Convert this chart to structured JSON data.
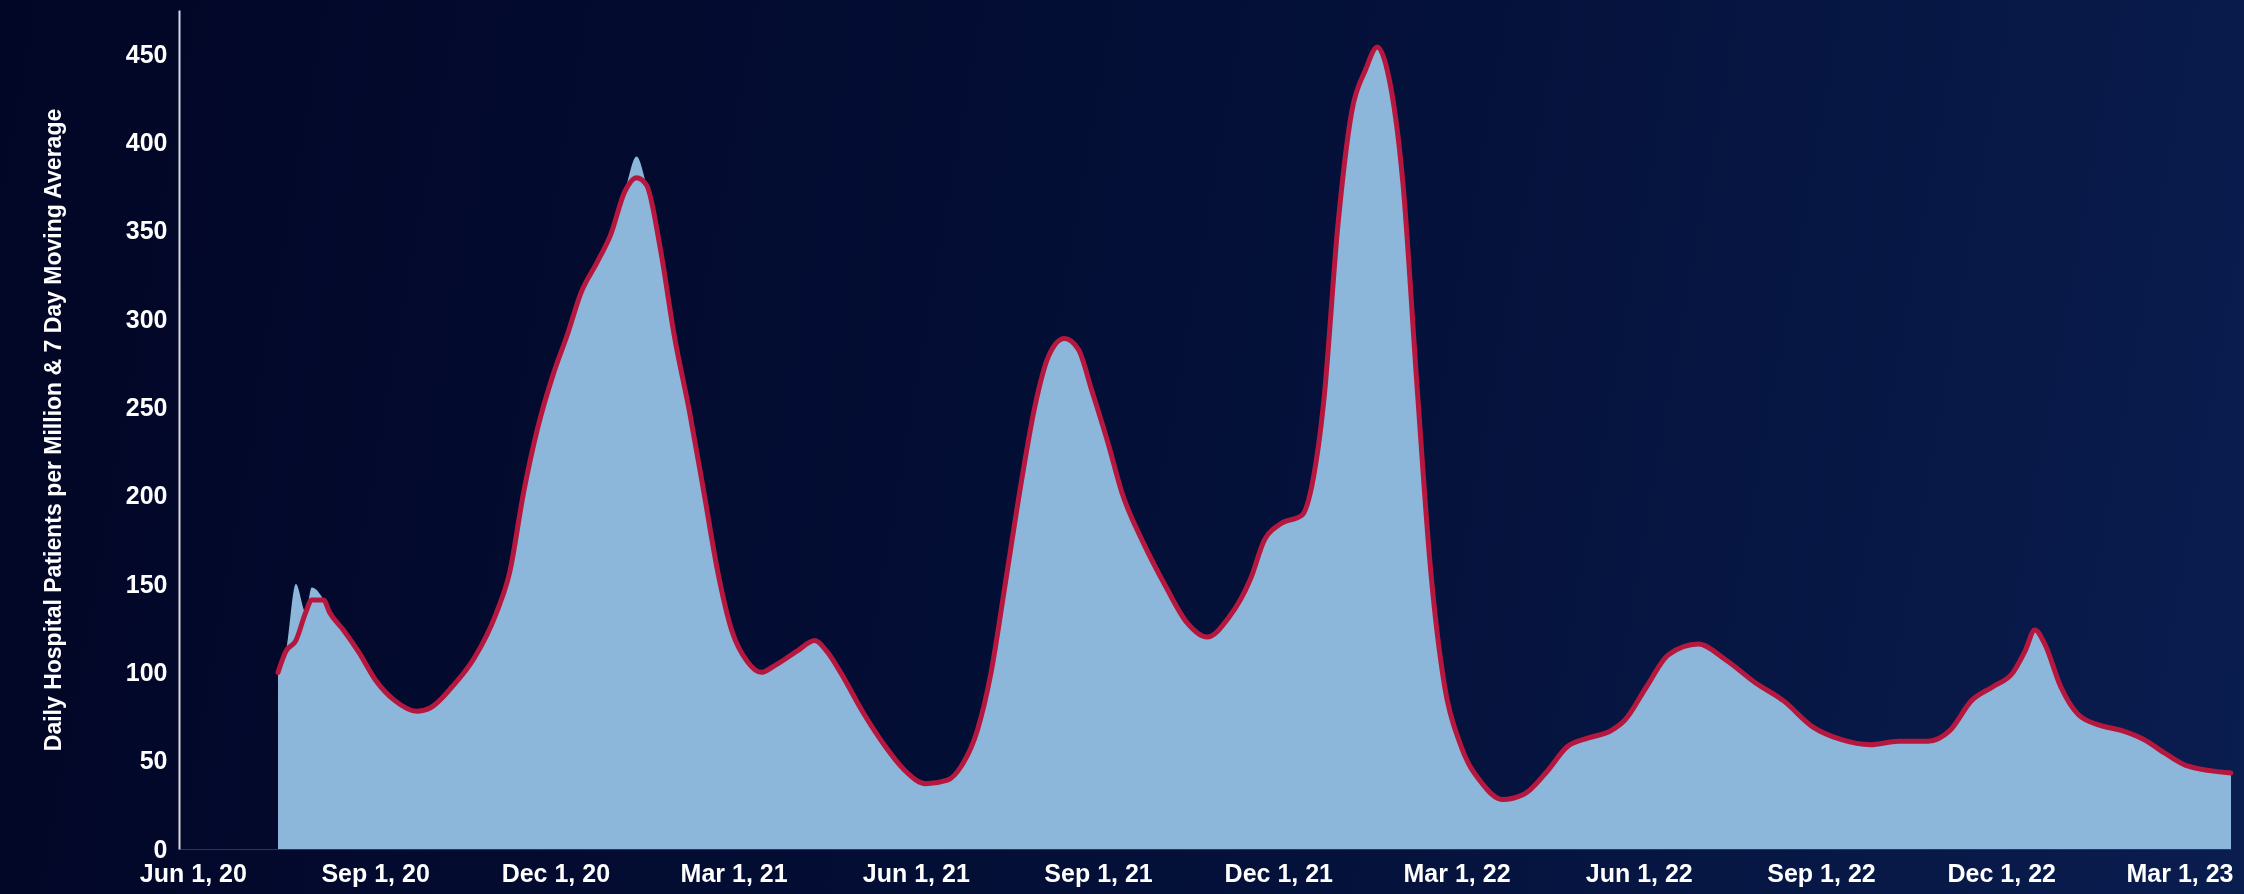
{
  "chart_data": {
    "type": "area",
    "ylabel": "Daily Hospital Patients per Million & 7 Day Moving Average",
    "x": [
      "2020-07-14",
      "2020-07-18",
      "2020-07-23",
      "2020-07-28",
      "2020-07-31",
      "2020-08-06",
      "2020-08-09",
      "2020-08-16",
      "2020-08-24",
      "2020-09-01",
      "2020-09-11",
      "2020-09-22",
      "2020-09-29",
      "2020-10-10",
      "2020-10-21",
      "2020-11-01",
      "2020-11-08",
      "2020-11-15",
      "2020-11-22",
      "2020-11-30",
      "2020-12-07",
      "2020-12-14",
      "2020-12-22",
      "2020-12-29",
      "2021-01-05",
      "2021-01-11",
      "2021-01-16",
      "2021-01-23",
      "2021-01-30",
      "2021-02-07",
      "2021-02-14",
      "2021-02-21",
      "2021-02-28",
      "2021-03-08",
      "2021-03-15",
      "2021-03-22",
      "2021-04-02",
      "2021-04-11",
      "2021-04-17",
      "2021-04-24",
      "2021-05-05",
      "2021-05-16",
      "2021-05-26",
      "2021-06-06",
      "2021-06-17",
      "2021-06-24",
      "2021-07-02",
      "2021-07-09",
      "2021-07-16",
      "2021-07-24",
      "2021-07-31",
      "2021-08-07",
      "2021-08-15",
      "2021-08-22",
      "2021-08-29",
      "2021-09-06",
      "2021-09-13",
      "2021-09-24",
      "2021-10-05",
      "2021-10-16",
      "2021-10-26",
      "2021-11-06",
      "2021-11-17",
      "2021-11-24",
      "2021-12-02",
      "2021-12-13",
      "2021-12-18",
      "2021-12-24",
      "2021-12-31",
      "2022-01-07",
      "2022-01-14",
      "2022-01-20",
      "2022-01-25",
      "2022-02-02",
      "2022-02-09",
      "2022-02-16",
      "2022-02-23",
      "2022-03-03",
      "2022-03-14",
      "2022-03-24",
      "2022-04-04",
      "2022-04-15",
      "2022-04-26",
      "2022-05-07",
      "2022-05-18",
      "2022-05-25",
      "2022-06-05",
      "2022-06-16",
      "2022-07-01",
      "2022-07-15",
      "2022-07-30",
      "2022-08-13",
      "2022-08-28",
      "2022-09-11",
      "2022-09-26",
      "2022-10-10",
      "2022-10-25",
      "2022-11-05",
      "2022-11-16",
      "2022-11-27",
      "2022-12-07",
      "2022-12-13",
      "2022-12-18",
      "2022-12-23",
      "2022-12-31",
      "2023-01-09",
      "2023-01-20",
      "2023-01-31",
      "2023-02-11",
      "2023-02-22",
      "2023-03-05",
      "2023-03-27"
    ],
    "series": [
      {
        "color": "#8cb7da",
        "values": [
          100,
          112,
          150,
          134,
          148,
          141,
          134,
          124,
          111,
          96,
          84,
          78,
          80,
          92,
          108,
          133,
          157,
          202,
          238,
          269,
          291,
          315,
          332,
          348,
          372,
          392,
          376,
          340,
          291,
          246,
          202,
          157,
          124,
          106,
          100,
          104,
          112,
          118,
          112,
          100,
          78,
          59,
          45,
          37,
          39,
          47,
          67,
          100,
          149,
          206,
          250,
          279,
          289,
          283,
          259,
          230,
          202,
          173,
          149,
          128,
          120,
          131,
          153,
          175,
          184,
          189,
          206,
          254,
          352,
          417,
          441,
          454,
          441,
          376,
          263,
          157,
          92,
          59,
          37,
          28,
          31,
          43,
          58,
          63,
          67,
          73,
          92,
          110,
          116,
          107,
          94,
          84,
          69,
          62,
          59,
          61,
          61,
          67,
          84,
          92,
          100,
          112,
          124,
          116,
          92,
          76,
          70,
          67,
          62,
          54,
          47,
          43
        ]
      },
      {
        "type": "line",
        "color": "#b5173f",
        "values": [
          100,
          112,
          118,
          134,
          141,
          141,
          134,
          124,
          111,
          96,
          84,
          78,
          80,
          92,
          108,
          133,
          157,
          202,
          238,
          269,
          291,
          315,
          332,
          348,
          372,
          380,
          376,
          340,
          291,
          246,
          202,
          157,
          124,
          106,
          100,
          104,
          112,
          118,
          112,
          100,
          78,
          59,
          45,
          37,
          39,
          47,
          67,
          100,
          149,
          206,
          250,
          279,
          289,
          283,
          259,
          230,
          202,
          173,
          149,
          128,
          120,
          131,
          153,
          175,
          184,
          189,
          206,
          254,
          352,
          417,
          441,
          454,
          441,
          376,
          263,
          157,
          92,
          59,
          37,
          28,
          31,
          43,
          58,
          63,
          67,
          73,
          92,
          110,
          116,
          107,
          94,
          84,
          69,
          62,
          59,
          61,
          61,
          67,
          84,
          92,
          100,
          112,
          124,
          116,
          92,
          76,
          70,
          67,
          62,
          54,
          47,
          43
        ]
      }
    ],
    "xlim": [
      "2020-05-25",
      "2023-03-27"
    ],
    "xticks": [
      {
        "value": "2020-06-01",
        "label": "Jun 1, 20"
      },
      {
        "value": "2020-09-01",
        "label": "Sep 1, 20"
      },
      {
        "value": "2020-12-01",
        "label": "Dec 1, 20"
      },
      {
        "value": "2021-03-01",
        "label": "Mar 1, 21"
      },
      {
        "value": "2021-06-01",
        "label": "Jun 1, 21"
      },
      {
        "value": "2021-09-01",
        "label": "Sep 1, 21"
      },
      {
        "value": "2021-12-01",
        "label": "Dec 1, 21"
      },
      {
        "value": "2022-03-01",
        "label": "Mar 1, 22"
      },
      {
        "value": "2022-06-01",
        "label": "Jun 1, 22"
      },
      {
        "value": "2022-09-01",
        "label": "Sep 1, 22"
      },
      {
        "value": "2022-12-01",
        "label": "Dec 1, 22"
      },
      {
        "value": "2023-03-01",
        "label": "Mar 1, 23"
      }
    ],
    "ylim": [
      0,
      475
    ],
    "yticks": [
      0,
      50,
      100,
      150,
      200,
      250,
      300,
      350,
      400,
      450
    ],
    "grid": false,
    "line_style": "solid"
  }
}
